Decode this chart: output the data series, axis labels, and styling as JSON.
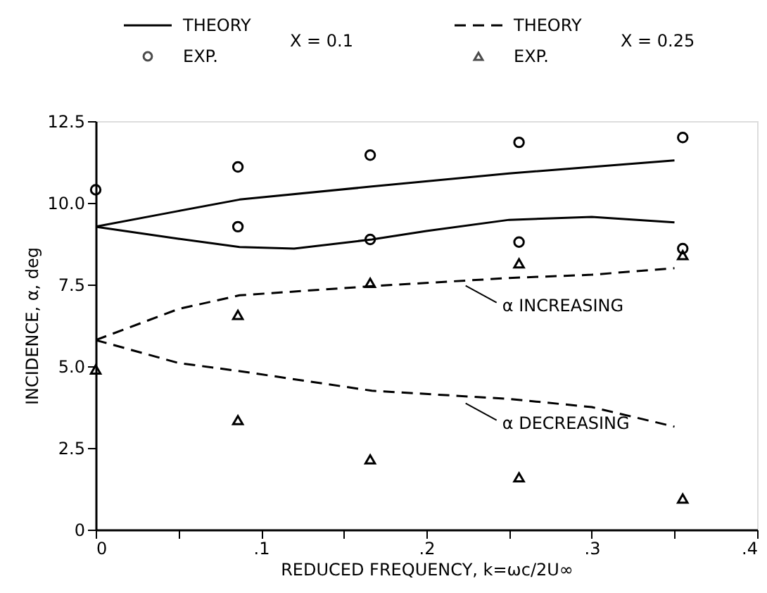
{
  "chart_data": {
    "type": "line",
    "xlabel": "REDUCED FREQUENCY, k=ωc/2U∞",
    "ylabel": "INCIDENCE, α, deg",
    "xlim": [
      0,
      0.4
    ],
    "ylim": [
      0,
      12.5
    ],
    "xticks": [
      0,
      {
        "value": 0.05,
        "label": null
      },
      {
        "value": 0.1,
        "label": ".1"
      },
      {
        "value": 0.15,
        "label": null
      },
      {
        "value": 0.2,
        "label": ".2"
      },
      {
        "value": 0.25,
        "label": null
      },
      {
        "value": 0.3,
        "label": ".3"
      },
      {
        "value": 0.35,
        "label": null
      },
      {
        "value": 0.4,
        "label": ".4"
      }
    ],
    "yticks": [
      0,
      2.5,
      {
        "value": 5,
        "label": "5.0"
      },
      7.5,
      {
        "value": 10,
        "label": "10.0"
      },
      {
        "value": 12.5,
        "label": "12.5"
      }
    ],
    "grid": false,
    "legend": "top",
    "series": [
      {
        "name": "THEORY",
        "line_style": "solid",
        "color": "#000000",
        "x": [
          0,
          0.05,
          0.087,
          0.167,
          0.25,
          0.3,
          0.35
        ],
        "values": [
          9.27,
          9.75,
          10.1,
          10.5,
          10.9,
          11.1,
          11.3
        ]
      },
      {
        "line_style": "solid",
        "color": "#000000",
        "x": [
          0,
          0.05,
          0.087,
          0.12,
          0.167,
          0.2,
          0.25,
          0.3,
          0.35
        ],
        "values": [
          9.27,
          8.9,
          8.65,
          8.6,
          8.88,
          9.14,
          9.48,
          9.57,
          9.4
        ]
      },
      {
        "name": "EXP.",
        "type": "scatter",
        "marker": "circle",
        "color": "#000000",
        "x": [
          0,
          0.086,
          0.086,
          0.166,
          0.166,
          0.256,
          0.256,
          0.355,
          0.355
        ],
        "values": [
          10.4,
          11.1,
          9.27,
          11.46,
          8.88,
          11.85,
          8.8,
          12.0,
          8.6
        ]
      },
      {
        "name": "THEORY",
        "line_style": "dashed",
        "color": "#000000",
        "x": [
          0,
          0.05,
          0.087,
          0.167,
          0.25,
          0.3,
          0.35
        ],
        "values": [
          5.8,
          6.75,
          7.17,
          7.45,
          7.7,
          7.8,
          8.0
        ]
      },
      {
        "line_style": "dashed",
        "color": "#000000",
        "x": [
          0,
          0.05,
          0.087,
          0.167,
          0.25,
          0.3,
          0.35
        ],
        "values": [
          5.8,
          5.1,
          4.85,
          4.25,
          4.0,
          3.75,
          3.15
        ]
      },
      {
        "name": "EXP.",
        "type": "scatter",
        "marker": "triangle",
        "color": "#000000",
        "x": [
          0,
          0.086,
          0.086,
          0.166,
          0.166,
          0.256,
          0.256,
          0.355,
          0.355
        ],
        "values": [
          4.9,
          6.57,
          3.35,
          7.55,
          2.15,
          8.15,
          1.6,
          8.4,
          0.95
        ]
      }
    ],
    "annotations": [
      "X = 0.1",
      "X = 0.25",
      {
        "text": "α INCREASING",
        "x": 0.222,
        "y": 7.55
      },
      {
        "text": "α DECREASING",
        "x": 0.222,
        "y": 3.95
      }
    ]
  }
}
